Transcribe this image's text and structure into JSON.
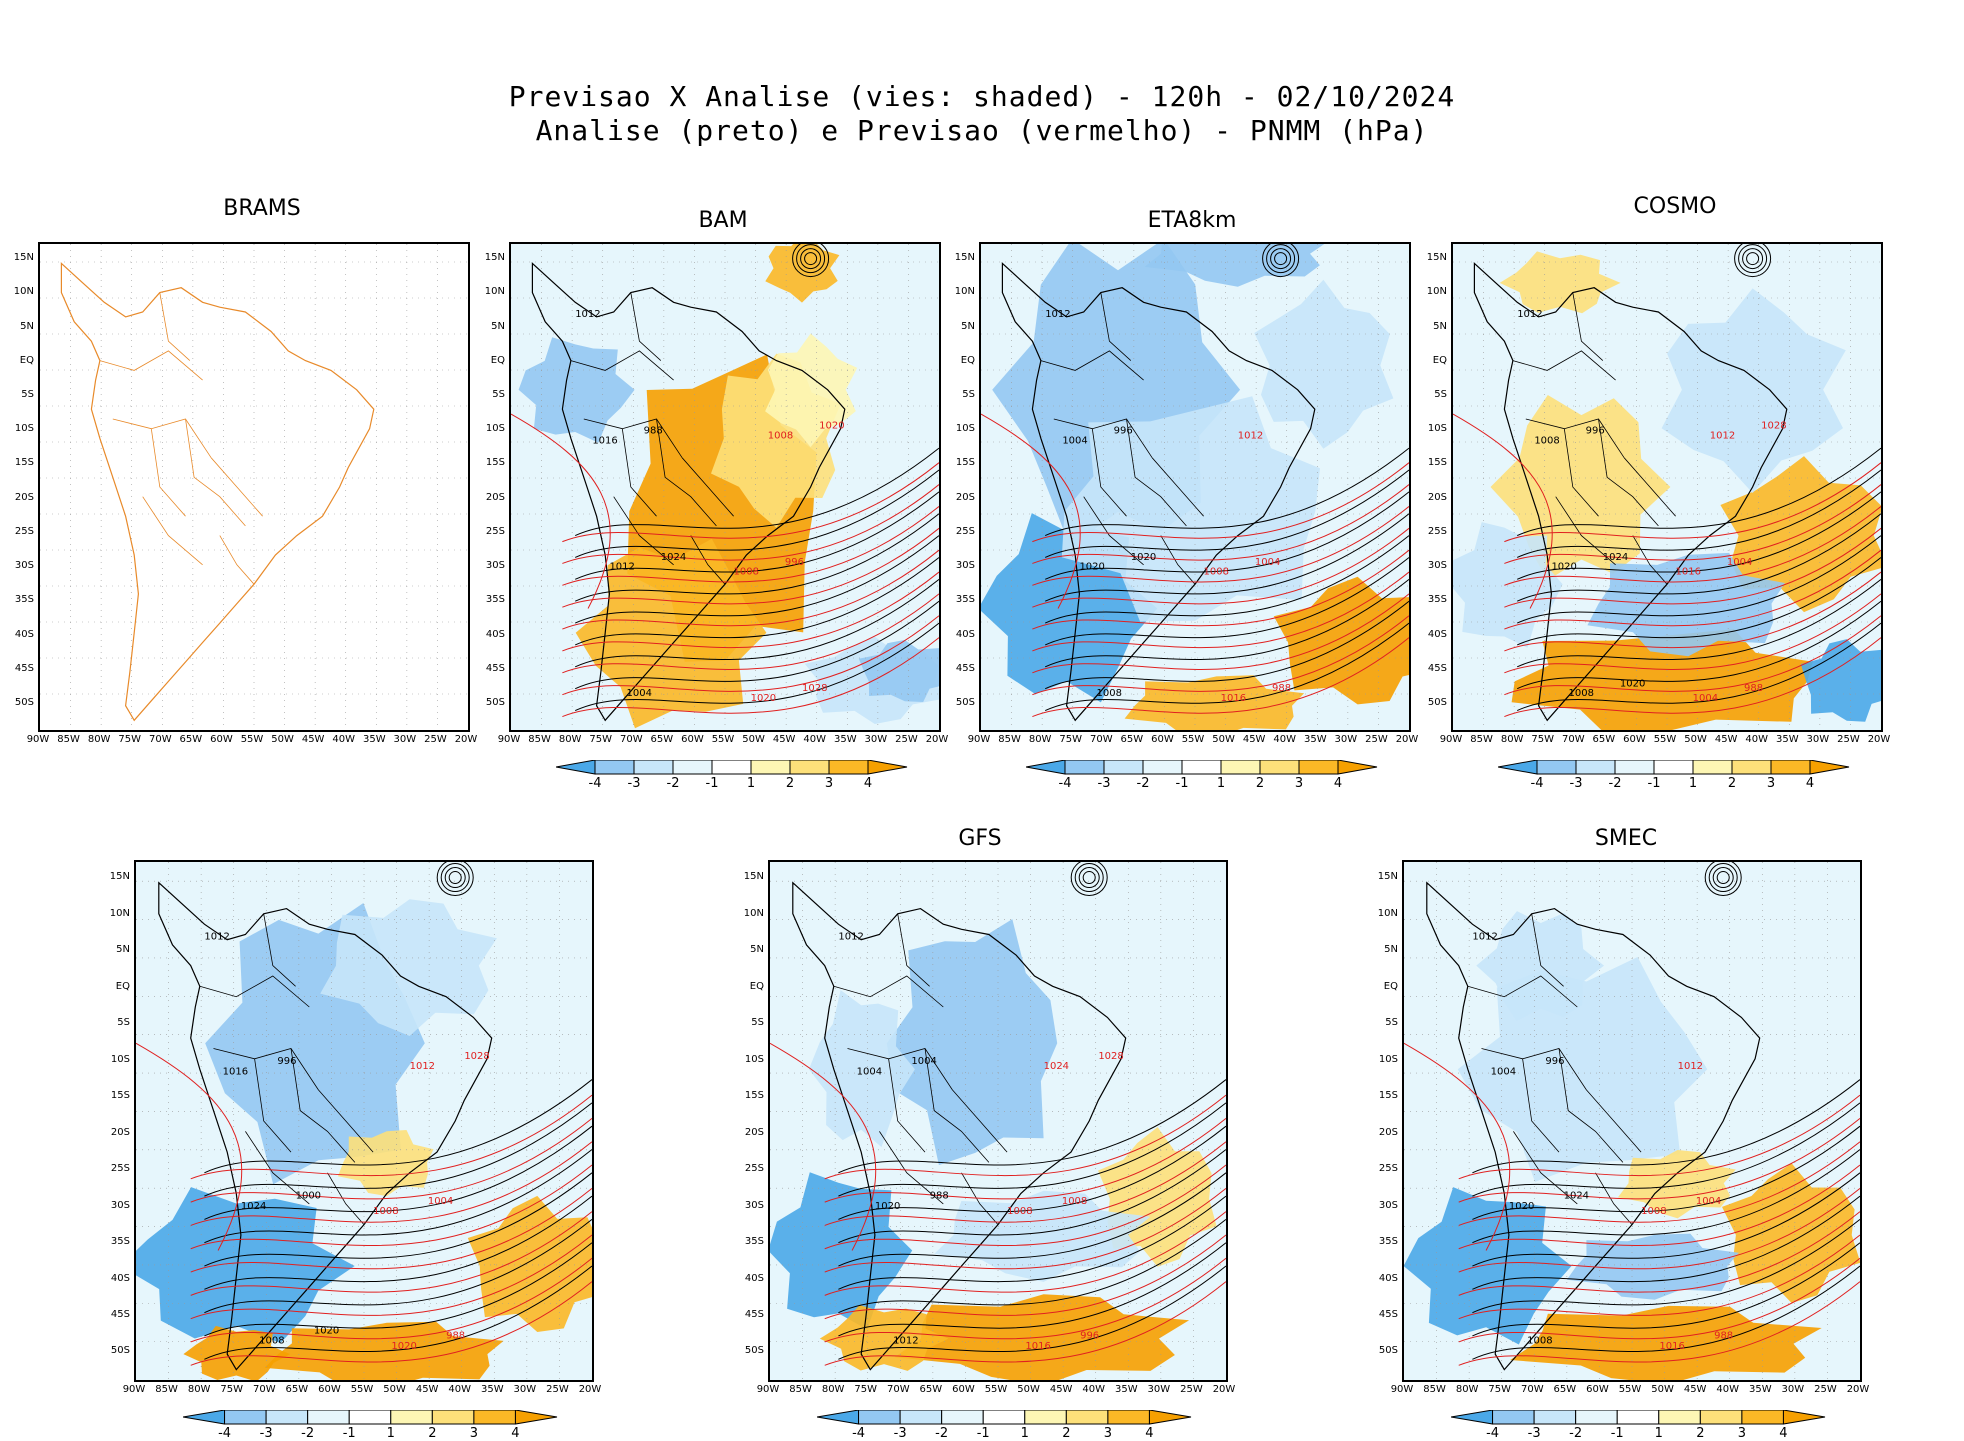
{
  "title": {
    "line1": "Previsao X Analise (vies: shaded) - 120h - 02/10/2024",
    "line2": "Analise (preto) e Previsao (vermelho) - PNMM (hPa)"
  },
  "lat_ticks": [
    "15N",
    "10N",
    "5N",
    "EQ",
    "5S",
    "10S",
    "15S",
    "20S",
    "25S",
    "30S",
    "35S",
    "40S",
    "45S",
    "50S"
  ],
  "lon_ticks": [
    "90W",
    "85W",
    "80W",
    "75W",
    "70W",
    "65W",
    "60W",
    "55W",
    "50W",
    "45W",
    "40W",
    "35W",
    "30W",
    "25W",
    "20W"
  ],
  "colorbar": {
    "labels": [
      "-4",
      "-3",
      "-2",
      "-1",
      "1",
      "2",
      "3",
      "4"
    ],
    "colors": [
      "#4aa8e8",
      "#93c8f2",
      "#c7e6fa",
      "#e6f6fc",
      "#ffffff",
      "#fdf6b4",
      "#fde07a",
      "#fbb826",
      "#f6a000"
    ]
  },
  "colors": {
    "analysis_contour": "#000000",
    "forecast_contour": "#e02020",
    "coast_brams": "#e88a2a"
  },
  "panels": [
    {
      "name": "BRAMS",
      "style": "empty",
      "isobars": []
    },
    {
      "name": "BAM",
      "style": "warm",
      "isobars": [
        "1012",
        "1008",
        "1016",
        "1020",
        "1012",
        "1008",
        "1004",
        "996",
        "988",
        "1028",
        "1024",
        "1020"
      ]
    },
    {
      "name": "ETA8km",
      "style": "cool",
      "isobars": [
        "1012",
        "1008",
        "1004",
        "1016",
        "1020",
        "1012",
        "1008",
        "1004",
        "996",
        "988",
        "1020"
      ]
    },
    {
      "name": "COSMO",
      "style": "mixed",
      "isobars": [
        "1012",
        "1016",
        "1008",
        "1004",
        "1020",
        "1012",
        "1008",
        "1004",
        "996",
        "988",
        "1024",
        "1028",
        "1020"
      ]
    },
    {
      "name": "",
      "style": "coolS",
      "isobars": [
        "1012",
        "1008",
        "1016",
        "1020",
        "1024",
        "1012",
        "1008",
        "1004",
        "996",
        "988",
        "1000",
        "1028",
        "1020"
      ]
    },
    {
      "name": "GFS",
      "style": "mixed2",
      "isobars": [
        "1012",
        "1008",
        "1004",
        "1016",
        "1020",
        "1024",
        "1012",
        "1008",
        "1004",
        "996",
        "988",
        "1028"
      ]
    },
    {
      "name": "SMEC",
      "style": "mixed3",
      "isobars": [
        "1012",
        "1008",
        "1004",
        "1016",
        "1020",
        "1012",
        "1008",
        "1004",
        "996",
        "988",
        "1024"
      ]
    }
  ]
}
